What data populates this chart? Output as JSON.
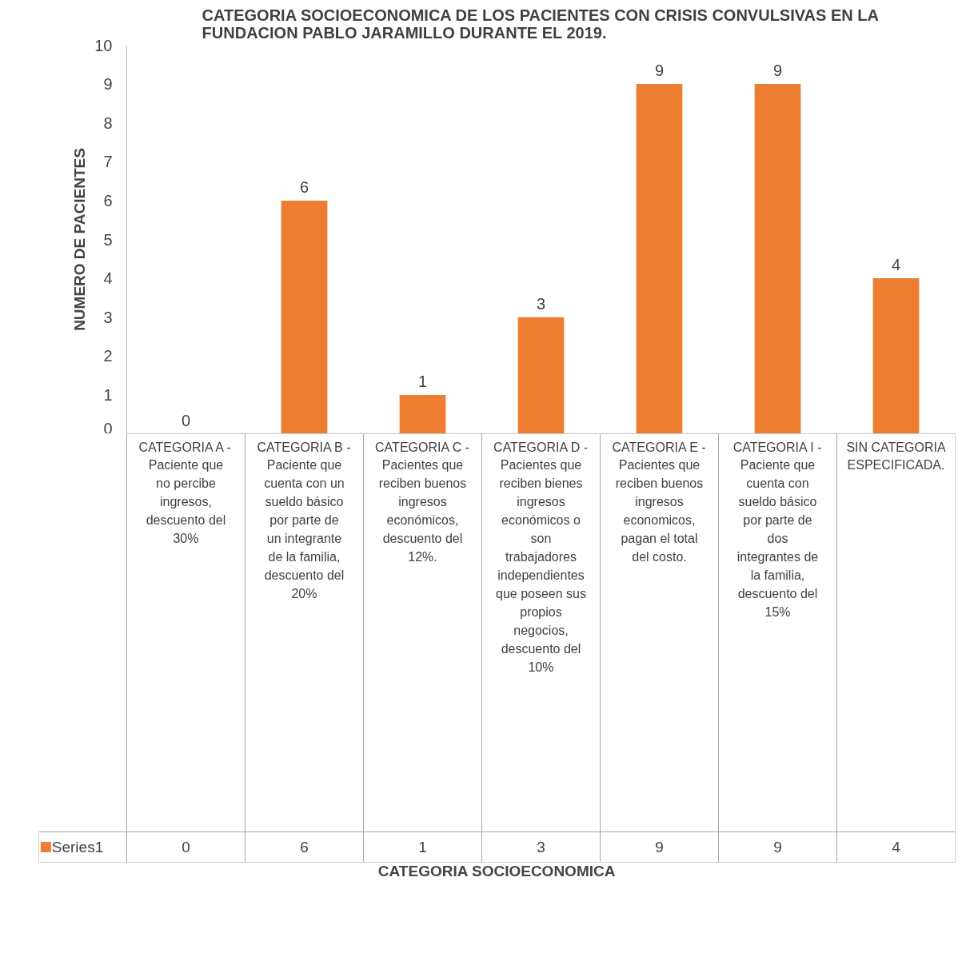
{
  "chart_data": {
    "type": "bar",
    "title": "CATEGORIA SOCIOECONOMICA DE LOS PACIENTES CON CRISIS CONVULSIVAS EN LA FUNDACION PABLO JARAMILLO DURANTE EL 2019.",
    "annotations": [
      "CATEGORIA SOCIOECONOMICA"
    ],
    "ylabel": "NUMERO DE PACIENTES",
    "categories": [
      "CATEGORIA A - Paciente que no percibe ingresos, descuento del 30%",
      "CATEGORIA B - Paciente que cuenta con un sueldo básico por parte de un integrante de la familia, descuento del 20%",
      "CATEGORIA C - Pacientes que reciben buenos ingresos económicos, descuento del 12%.",
      "CATEGORIA D - Pacientes que reciben bienes ingresos económicos o son trabajadores independientes que poseen sus propios negocios, descuento del 10%",
      "CATEGORIA E - Pacientes que reciben buenos ingresos economicos, pagan el total del costo.",
      "CATEGORIA I - Paciente que cuenta con sueldo básico por parte de dos integrantes de la familia, descuento del 15%",
      "SIN CATEGORIA ESPECIFICADA."
    ],
    "series": [
      {
        "name": "Series1",
        "color": "#ed7d31",
        "values": [
          0,
          6,
          1,
          3,
          9,
          9,
          4
        ],
        "value_labels": [
          "0",
          "6",
          "1",
          "3",
          "9",
          "9",
          "4"
        ]
      }
    ],
    "ylim": [
      0,
      10
    ],
    "yticks": [
      0,
      1,
      2,
      3,
      4,
      5,
      6,
      7,
      8,
      9,
      10
    ],
    "grid": false,
    "data_labels": true,
    "legend": "bottom"
  }
}
